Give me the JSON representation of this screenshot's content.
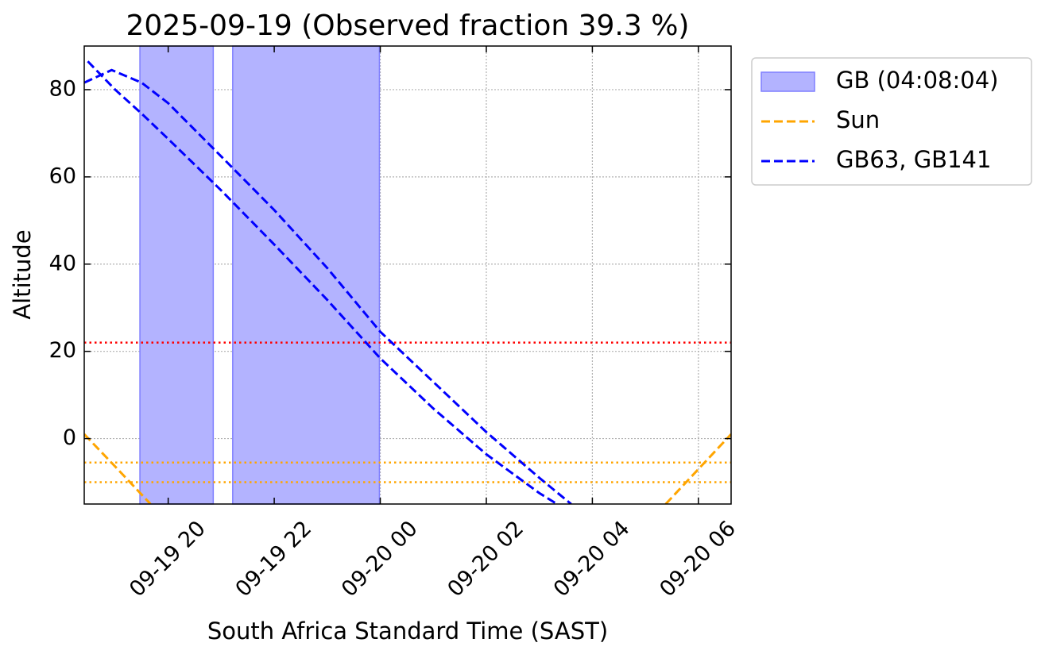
{
  "chart_data": {
    "type": "line",
    "title": "2025-09-19 (Observed fraction 39.3 %)",
    "x_label": "South Africa Standard Time (SAST)",
    "y_label": "Altitude",
    "xlim": [
      "09-19 18:25",
      "09-20 06:37"
    ],
    "xticks": [
      "09-19 20",
      "09-19 22",
      "09-20 00",
      "09-20 02",
      "09-20 04",
      "09-20 06"
    ],
    "ylim": [
      -15,
      90
    ],
    "yticks": [
      0,
      20,
      40,
      60,
      80
    ],
    "grid": true,
    "legend": "outside upper right",
    "spans": [
      {
        "name": "GB (04:08:04)",
        "color": "#b3b3ff",
        "edge_color": "#7f7fff",
        "ranges": [
          [
            "09-19 19:28",
            "09-19 20:51"
          ],
          [
            "09-19 21:13",
            "09-19 23:59"
          ]
        ]
      }
    ],
    "hlines": [
      {
        "value": 22,
        "color": "red"
      },
      {
        "value": -5.5,
        "color": "orange"
      },
      {
        "value": -10,
        "color": "orange"
      }
    ],
    "series": [
      {
        "name": "Sun",
        "color": "orange",
        "lines": [
          {
            "x": [
              "09-19 18:25",
              "09-19 19:00",
              "09-19 19:40",
              "09-20 00:00",
              "09-20 05:23",
              "09-20 06:00",
              "09-20 06:37"
            ],
            "values": [
              1,
              -6.4,
              -15,
              null,
              -15,
              -7,
              1
            ]
          }
        ]
      },
      {
        "name": "GB63, GB141",
        "color": "blue",
        "lines": [
          {
            "x": [
              "09-19 18:25",
              "09-19 18:56",
              "09-19 19:30",
              "09-19 20:00",
              "09-19 21:00",
              "09-19 22:00",
              "09-19 23:00",
              "09-20 00:00",
              "09-20 01:00",
              "09-20 02:00",
              "09-20 03:00",
              "09-20 03:36"
            ],
            "values": [
              81.6,
              84.5,
              81.6,
              76.9,
              64.7,
              52.4,
              39.1,
              24.5,
              13,
              1.5,
              -9,
              -15
            ]
          },
          {
            "x": [
              "09-19 18:29",
              "09-19 19:00",
              "09-19 19:30",
              "09-19 20:00",
              "09-19 21:00",
              "09-19 22:00",
              "09-19 23:00",
              "09-20 00:00",
              "09-20 01:00",
              "09-20 02:00",
              "09-20 03:00",
              "09-20 03:20"
            ],
            "values": [
              86.5,
              80,
              74.5,
              68.7,
              56.9,
              44.5,
              31.8,
              18.4,
              6.9,
              -3.6,
              -12.5,
              -15
            ]
          }
        ]
      }
    ]
  }
}
